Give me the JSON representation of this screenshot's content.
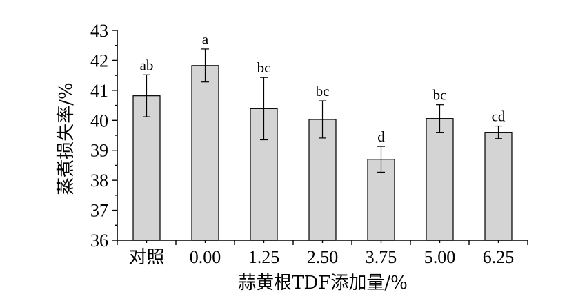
{
  "chart_data": {
    "type": "bar",
    "categories": [
      "对照",
      "0.00",
      "1.25",
      "2.50",
      "3.75",
      "5.00",
      "6.25"
    ],
    "values": [
      40.82,
      41.83,
      40.39,
      40.03,
      38.7,
      40.06,
      39.6
    ],
    "errors": [
      0.7,
      0.55,
      1.04,
      0.62,
      0.43,
      0.46,
      0.21
    ],
    "labels": [
      "ab",
      "a",
      "bc",
      "bc",
      "d",
      "bc",
      "cd"
    ],
    "xlabel": "蒜黄根TDF添加量/%",
    "ylabel": "蒸煮损失率/%",
    "ylim": [
      36,
      43
    ],
    "yticks": [
      "36",
      "37",
      "38",
      "39",
      "40",
      "41",
      "42",
      "43"
    ],
    "grid": false,
    "colors": {
      "bar": "#d4d4d4",
      "edge": "#000000"
    }
  }
}
